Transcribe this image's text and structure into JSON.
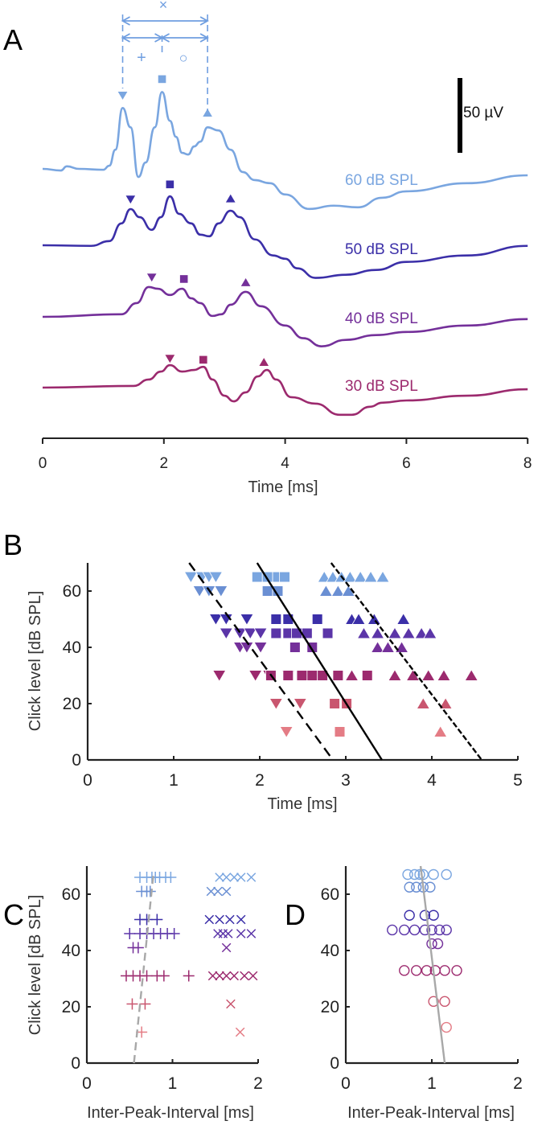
{
  "colors": {
    "db60": "#7aa6e0",
    "db60b": "#6a8fd3",
    "db50": "#3b2fa8",
    "db45": "#5b35a8",
    "db40": "#74309a",
    "db30": "#9c2a6e",
    "db20": "#c9566f",
    "db10": "#e47c85",
    "gray": "#a8a8a8",
    "annot": "#6f9ee0"
  },
  "chart_data": [
    {
      "panel": "A",
      "type": "line",
      "xlabel": "Time [ms]",
      "xlim": [
        0,
        8
      ],
      "xticks": [
        0,
        2,
        4,
        6,
        8
      ],
      "scalebar": {
        "value": 50,
        "label": "50 µV"
      },
      "annotations": {
        "cross": "×",
        "plus": "+",
        "circle": "○"
      },
      "series": [
        {
          "name": "60 dB SPL",
          "color": "db60",
          "points": [
            [
              0,
              0
            ],
            [
              0.3,
              -1.1
            ],
            [
              0.4,
              1.7
            ],
            [
              0.6,
              0
            ],
            [
              1.0,
              -0.6
            ],
            [
              1.1,
              2.1
            ],
            [
              1.2,
              12.8
            ],
            [
              1.32,
              40.7
            ],
            [
              1.45,
              27.8
            ],
            [
              1.58,
              -5.4
            ],
            [
              1.7,
              4.3
            ],
            [
              1.85,
              27.8
            ],
            [
              1.97,
              51.4
            ],
            [
              2.1,
              32.1
            ],
            [
              2.2,
              21.4
            ],
            [
              2.3,
              10.7
            ],
            [
              2.4,
              9.6
            ],
            [
              2.5,
              15
            ],
            [
              2.6,
              18.2
            ],
            [
              2.72,
              27.8
            ],
            [
              2.9,
              25.7
            ],
            [
              3.1,
              12.8
            ],
            [
              3.3,
              -2.1
            ],
            [
              3.5,
              -7.5
            ],
            [
              3.75,
              -9.6
            ],
            [
              4.0,
              -17.1
            ],
            [
              4.4,
              -26.8
            ],
            [
              4.8,
              -24.6
            ],
            [
              5.2,
              -25.7
            ],
            [
              5.6,
              -19.3
            ],
            [
              6,
              -15
            ],
            [
              7,
              -9.6
            ],
            [
              8,
              -4.3
            ]
          ],
          "peaks": {
            "down": [
              1.32,
              49
            ],
            "square": [
              1.97,
              60
            ],
            "up": [
              2.72,
              37.5
            ]
          }
        },
        {
          "name": "50 dB SPL",
          "color": "db50",
          "points": [
            [
              0,
              0
            ],
            [
              0.8,
              -0.4
            ],
            [
              1.1,
              2.8
            ],
            [
              1.3,
              14.6
            ],
            [
              1.45,
              24.2
            ],
            [
              1.6,
              18.8
            ],
            [
              1.8,
              10.3
            ],
            [
              1.95,
              18.8
            ],
            [
              2.1,
              32.7
            ],
            [
              2.25,
              21
            ],
            [
              2.45,
              14.6
            ],
            [
              2.6,
              7.1
            ],
            [
              2.75,
              6
            ],
            [
              2.9,
              14.6
            ],
            [
              3.1,
              23.1
            ],
            [
              3.25,
              18.8
            ],
            [
              3.5,
              3.9
            ],
            [
              3.8,
              -6.8
            ],
            [
              4.0,
              -9
            ],
            [
              4.2,
              -15.4
            ],
            [
              4.5,
              -21.8
            ],
            [
              5,
              -19.7
            ],
            [
              5.5,
              -16.5
            ],
            [
              6,
              -11.1
            ],
            [
              7,
              -6.8
            ],
            [
              8,
              -0.4
            ]
          ],
          "peaks": {
            "down": [
              1.45,
              30.6
            ],
            "square": [
              2.1,
              40.7
            ],
            "up": [
              3.1,
              31.3
            ]
          }
        },
        {
          "name": "40 dB SPL",
          "color": "db40",
          "points": [
            [
              0,
              0
            ],
            [
              1.3,
              1.7
            ],
            [
              1.55,
              9.2
            ],
            [
              1.75,
              19.9
            ],
            [
              1.9,
              18.8
            ],
            [
              2.1,
              14.6
            ],
            [
              2.3,
              18.8
            ],
            [
              2.45,
              12.4
            ],
            [
              2.6,
              9.2
            ],
            [
              2.8,
              0.6
            ],
            [
              2.95,
              1.7
            ],
            [
              3.1,
              8.1
            ],
            [
              3.35,
              16.7
            ],
            [
              3.6,
              7.1
            ],
            [
              4.0,
              -5.8
            ],
            [
              4.3,
              -14.3
            ],
            [
              4.6,
              -19.7
            ],
            [
              5,
              -15.4
            ],
            [
              5.5,
              -12.2
            ],
            [
              6,
              -10.1
            ],
            [
              7,
              -5.8
            ],
            [
              8,
              -1.5
            ]
          ],
          "peaks": {
            "down": [
              1.8,
              26.3
            ],
            "square": [
              2.33,
              25.3
            ],
            "up": [
              3.35,
              23.1
            ]
          }
        },
        {
          "name": "30 dB SPL",
          "color": "db30",
          "points": [
            [
              0,
              0
            ],
            [
              1.5,
              1.1
            ],
            [
              1.75,
              5.4
            ],
            [
              1.95,
              10.7
            ],
            [
              2.1,
              15
            ],
            [
              2.3,
              10.7
            ],
            [
              2.5,
              11.8
            ],
            [
              2.65,
              13.9
            ],
            [
              2.8,
              5.4
            ],
            [
              3.0,
              -5.4
            ],
            [
              3.15,
              -9.2
            ],
            [
              3.35,
              -3.2
            ],
            [
              3.55,
              7.5
            ],
            [
              3.7,
              11.8
            ],
            [
              3.85,
              5.4
            ],
            [
              4.1,
              -6.4
            ],
            [
              4.5,
              -10.7
            ],
            [
              4.9,
              -18.2
            ],
            [
              5.1,
              -18.2
            ],
            [
              5.4,
              -12.8
            ],
            [
              5.6,
              -10.1
            ],
            [
              6,
              -8.6
            ],
            [
              7,
              -5.4
            ],
            [
              8,
              -1.1
            ]
          ],
          "peaks": {
            "down": [
              2.1,
              19.3
            ],
            "square": [
              2.65,
              18.6
            ],
            "up": [
              3.65,
              17.1
            ]
          }
        }
      ]
    },
    {
      "panel": "B",
      "type": "scatter",
      "xlabel": "Time [ms]",
      "ylabel": "Click level [dB SPL]",
      "xlim": [
        0,
        5
      ],
      "ylim": [
        0,
        70
      ],
      "xticks": [
        0,
        1,
        2,
        3,
        4,
        5
      ],
      "yticks": [
        0,
        20,
        40,
        60
      ],
      "groups": [
        {
          "level": 65,
          "color": "db60",
          "down": [
            1.2,
            1.33,
            1.41,
            1.49
          ],
          "square": [
            1.97,
            2.09,
            2.21,
            2.29
          ],
          "up": [
            2.75,
            2.85,
            2.95,
            3.05,
            3.17,
            3.29,
            3.43
          ]
        },
        {
          "level": 60,
          "color": "db60b",
          "down": [
            1.3,
            1.41,
            1.55
          ],
          "square": [
            2.09,
            2.21
          ],
          "up": [
            2.77,
            2.91,
            3.03
          ]
        },
        {
          "level": 50,
          "color": "db50",
          "down": [
            1.49,
            1.61,
            1.85
          ],
          "square": [
            2.19,
            2.33,
            2.67
          ],
          "up": [
            3.07,
            3.15,
            3.33,
            3.67
          ]
        },
        {
          "level": 45,
          "color": "db45",
          "down": [
            1.61,
            1.77,
            1.89,
            2.01
          ],
          "square": [
            2.19,
            2.33,
            2.43,
            2.55,
            2.79
          ],
          "up": [
            3.21,
            3.37,
            3.57,
            3.73,
            3.88,
            3.98
          ]
        },
        {
          "level": 40,
          "color": "db40",
          "down": [
            1.77,
            1.85,
            2.01
          ],
          "square": [
            2.41,
            2.61
          ],
          "up": [
            3.37,
            3.49,
            3.65
          ]
        },
        {
          "level": 30,
          "color": "db30",
          "down": [
            1.53,
            1.95,
            2.11,
            2.33
          ],
          "square": [
            2.13,
            2.33,
            2.49,
            2.61,
            2.73,
            2.91,
            3.25
          ],
          "up": [
            3.07,
            3.57,
            3.78,
            3.96,
            4.14,
            4.46
          ]
        },
        {
          "level": 20,
          "color": "db20",
          "down": [
            2.19,
            2.47
          ],
          "square": [
            2.87,
            3.01
          ],
          "up": [
            3.9,
            4.16
          ]
        },
        {
          "level": 10,
          "color": "db10",
          "down": [
            2.31
          ],
          "square": [
            2.93
          ],
          "up": [
            4.1
          ]
        }
      ],
      "fits": [
        {
          "style": "dashed",
          "from": [
            1.18,
            70
          ],
          "to": [
            2.85,
            0
          ]
        },
        {
          "style": "solid",
          "from": [
            1.97,
            70
          ],
          "to": [
            3.42,
            0
          ]
        },
        {
          "style": "dotdash",
          "from": [
            2.83,
            70
          ],
          "to": [
            4.58,
            0
          ]
        }
      ]
    },
    {
      "panel": "C",
      "type": "scatter",
      "xlabel": "Inter-Peak-Interval [ms]",
      "ylabel": "Click level [dB SPL]",
      "xlim": [
        0,
        2
      ],
      "ylim": [
        0,
        70
      ],
      "xticks": [
        0,
        1,
        2
      ],
      "yticks": [
        0,
        20,
        40,
        60
      ],
      "groups": [
        {
          "level": 66,
          "color": "db60",
          "plus": [
            0.62,
            0.7,
            0.76,
            0.8,
            0.85,
            0.92,
            0.98
          ],
          "cross": [
            1.55,
            1.63,
            1.72,
            1.8,
            1.92
          ]
        },
        {
          "level": 61,
          "color": "db60b",
          "plus": [
            0.64,
            0.7,
            0.74
          ],
          "cross": [
            1.45,
            1.53,
            1.63
          ]
        },
        {
          "level": 51,
          "color": "db50",
          "plus": [
            0.62,
            0.7,
            0.82
          ],
          "cross": [
            1.43,
            1.55,
            1.67,
            1.8
          ]
        },
        {
          "level": 46,
          "color": "db45",
          "plus": [
            0.5,
            0.62,
            0.7,
            0.78,
            0.86,
            0.94,
            1.02
          ],
          "cross": [
            1.53,
            1.59,
            1.65,
            1.8,
            1.92
          ]
        },
        {
          "level": 41,
          "color": "db40",
          "plus": [
            0.54,
            0.6
          ],
          "cross": [
            1.63
          ]
        },
        {
          "level": 31,
          "color": "db30",
          "plus": [
            0.46,
            0.54,
            0.62,
            0.7,
            0.82,
            0.9,
            1.19
          ],
          "cross": [
            1.47,
            1.55,
            1.63,
            1.72,
            1.84,
            1.94
          ]
        },
        {
          "level": 21,
          "color": "db20",
          "plus": [
            0.53,
            0.68
          ],
          "cross": [
            1.68
          ]
        },
        {
          "level": 11,
          "color": "db10",
          "plus": [
            0.64
          ],
          "cross": [
            1.79
          ]
        }
      ],
      "fits": [
        {
          "style": "graydash",
          "from": [
            0.55,
            0
          ],
          "to": [
            0.78,
            68
          ]
        }
      ]
    },
    {
      "panel": "D",
      "type": "scatter",
      "xlabel": "Inter-Peak-Interval [ms]",
      "xlim": [
        0,
        2
      ],
      "ylim": [
        0,
        70
      ],
      "xticks": [
        0,
        1,
        2
      ],
      "yticks": [
        0,
        20,
        40,
        60
      ],
      "groups": [
        {
          "level": 67,
          "color": "db60",
          "circle": [
            0.72,
            0.8,
            0.86,
            0.9,
            1.02,
            1.17
          ]
        },
        {
          "level": 62.5,
          "color": "db60b",
          "circle": [
            0.74,
            0.82,
            0.9,
            0.98
          ]
        },
        {
          "level": 52.5,
          "color": "db50",
          "circle": [
            0.74,
            0.92,
            1.02
          ]
        },
        {
          "level": 47.3,
          "color": "db45",
          "circle": [
            0.54,
            0.68,
            0.8,
            0.92,
            1.0,
            1.09,
            1.17
          ]
        },
        {
          "level": 42.4,
          "color": "db40",
          "circle": [
            1.0,
            1.07
          ]
        },
        {
          "level": 32.9,
          "color": "db30",
          "circle": [
            0.68,
            0.82,
            0.94,
            1.04,
            1.15,
            1.29
          ]
        },
        {
          "level": 21.9,
          "color": "db20",
          "circle": [
            1.02,
            1.15
          ]
        },
        {
          "level": 12.7,
          "color": "db10",
          "circle": [
            1.17
          ]
        }
      ],
      "fits": [
        {
          "style": "graysolid",
          "from": [
            0.87,
            70
          ],
          "to": [
            1.15,
            0
          ]
        }
      ]
    }
  ]
}
